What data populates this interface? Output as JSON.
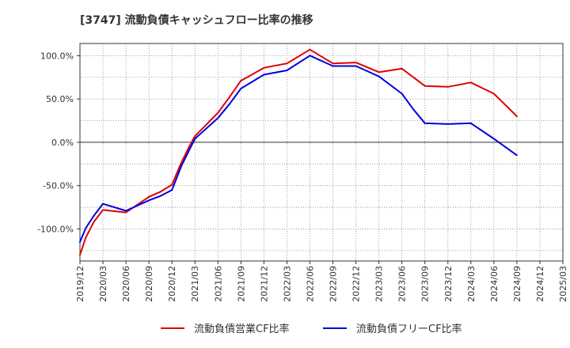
{
  "chart_data": {
    "type": "line",
    "title": "[3747]  流動負債キャッシュフロー比率の推移",
    "xlabel": "",
    "ylabel": "",
    "x_tick_labels": [
      "2019/12",
      "2020/03",
      "2020/06",
      "2020/09",
      "2020/12",
      "2021/03",
      "2021/06",
      "2021/09",
      "2021/12",
      "2022/03",
      "2022/06",
      "2022/09",
      "2022/12",
      "2023/03",
      "2023/06",
      "2023/09",
      "2023/12",
      "2024/03",
      "2024/06",
      "2024/09",
      "2024/12",
      "2025/03"
    ],
    "y_tick_labels": [
      "100.0%",
      "50.0%",
      "0.0%",
      "-50.0%",
      "-100.0%"
    ],
    "y_tick_values": [
      100,
      50,
      0,
      -50,
      -100
    ],
    "ylim": [
      -137,
      114
    ],
    "grid": true,
    "series": [
      {
        "name": "流動負債営業CF比率",
        "color": "#e00000",
        "points": [
          {
            "q": 0,
            "v": -130
          },
          {
            "q": 0.25,
            "v": -110
          },
          {
            "q": 0.6,
            "v": -92
          },
          {
            "q": 1,
            "v": -78
          },
          {
            "q": 2,
            "v": -81
          },
          {
            "q": 3,
            "v": -63
          },
          {
            "q": 3.5,
            "v": -57
          },
          {
            "q": 4,
            "v": -49
          },
          {
            "q": 4.4,
            "v": -24
          },
          {
            "q": 4.75,
            "v": -5
          },
          {
            "q": 5,
            "v": 7
          },
          {
            "q": 6,
            "v": 34
          },
          {
            "q": 6.5,
            "v": 52
          },
          {
            "q": 7,
            "v": 71
          },
          {
            "q": 8,
            "v": 86
          },
          {
            "q": 9,
            "v": 91
          },
          {
            "q": 10,
            "v": 107
          },
          {
            "q": 11,
            "v": 91
          },
          {
            "q": 12,
            "v": 92
          },
          {
            "q": 13,
            "v": 81
          },
          {
            "q": 14,
            "v": 85
          },
          {
            "q": 15,
            "v": 65
          },
          {
            "q": 16,
            "v": 64
          },
          {
            "q": 17,
            "v": 69
          },
          {
            "q": 18,
            "v": 56
          },
          {
            "q": 19,
            "v": 30
          }
        ]
      },
      {
        "name": "流動負債フリーCF比率",
        "color": "#0000e0",
        "points": [
          {
            "q": 0,
            "v": -115
          },
          {
            "q": 0.25,
            "v": -99
          },
          {
            "q": 0.6,
            "v": -85
          },
          {
            "q": 1,
            "v": -71
          },
          {
            "q": 2,
            "v": -79
          },
          {
            "q": 3,
            "v": -67
          },
          {
            "q": 3.5,
            "v": -62
          },
          {
            "q": 4,
            "v": -55
          },
          {
            "q": 4.4,
            "v": -28
          },
          {
            "q": 4.75,
            "v": -9
          },
          {
            "q": 5,
            "v": 4
          },
          {
            "q": 6,
            "v": 28
          },
          {
            "q": 6.5,
            "v": 44
          },
          {
            "q": 7,
            "v": 62
          },
          {
            "q": 8,
            "v": 78
          },
          {
            "q": 9,
            "v": 83
          },
          {
            "q": 10,
            "v": 100
          },
          {
            "q": 11,
            "v": 88
          },
          {
            "q": 12,
            "v": 88
          },
          {
            "q": 13,
            "v": 76
          },
          {
            "q": 14,
            "v": 56
          },
          {
            "q": 14.5,
            "v": 38
          },
          {
            "q": 15,
            "v": 22
          },
          {
            "q": 16,
            "v": 21
          },
          {
            "q": 17,
            "v": 22
          },
          {
            "q": 18,
            "v": 4
          },
          {
            "q": 19,
            "v": -15
          }
        ]
      }
    ],
    "legend_position": "bottom-center"
  }
}
